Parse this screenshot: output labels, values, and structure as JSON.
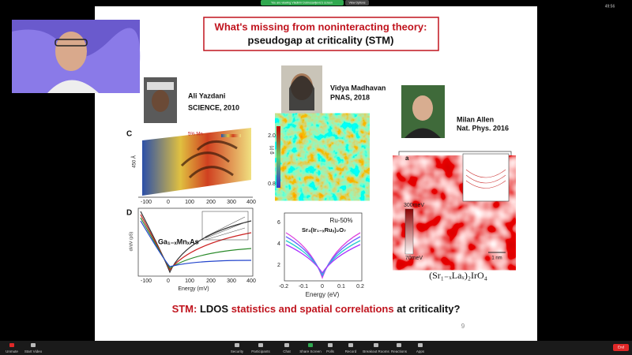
{
  "meeting": {
    "banner": "You are viewing Vladimir Dobrosavljevic's screen",
    "view_options": "View Options",
    "timer": "49:56",
    "toolbar": [
      "Unmute",
      "Start Video",
      "Security",
      "Participants",
      "Chat",
      "Share Screen",
      "Polls",
      "Record",
      "Breakout Rooms",
      "Reactions",
      "Apps"
    ],
    "end": "End"
  },
  "slide": {
    "title": "What's missing from noninteracting theory:",
    "subtitle": "pseudogap at criticality (STM)",
    "authors": [
      {
        "name": "Ali Yazdani",
        "ref": "SCIENCE, 2010"
      },
      {
        "name": "Vidya Madhavan",
        "ref": "PNAS, 2018"
      },
      {
        "name": "Milan Allen",
        "ref": "Nat. Phys. 2016"
      }
    ],
    "panel_c": {
      "label": "C",
      "note": "5% Mn",
      "scale": "450 Å",
      "xticks": [
        "-100",
        "0",
        "100",
        "200",
        "300",
        "400"
      ]
    },
    "panel_d": {
      "label": "D",
      "material": "Ga₁₋ₓMnₓAs",
      "ylabel": "dI/dV (pS)",
      "xlabel": "Energy (mV)",
      "xticks": [
        "-100",
        "0",
        "100",
        "200",
        "300",
        "400"
      ]
    },
    "map_mid": {
      "ylabel": "g (r)",
      "colorbar": [
        "2.0",
        "0.8"
      ]
    },
    "plot_mid": {
      "note": "Ru-50%",
      "material": "Sr₃(Ir₁₋ₓRuₓ)₂O₇",
      "xlabel": "Energy (eV)",
      "xticks": [
        "-0.2",
        "-0.1",
        "0",
        "0.1",
        "0.2"
      ],
      "yticks": [
        "2",
        "4",
        "6"
      ]
    },
    "map_right": {
      "label": "a",
      "colorbar": [
        "300meV",
        "70meV"
      ],
      "scale": "1 nm",
      "material": "(Sr₁₋ₓLaₓ)₂IrO₄"
    },
    "question": [
      "STM:",
      " LDOS",
      " statistics and spatial correlations",
      " at criticality?"
    ],
    "page": "9"
  }
}
